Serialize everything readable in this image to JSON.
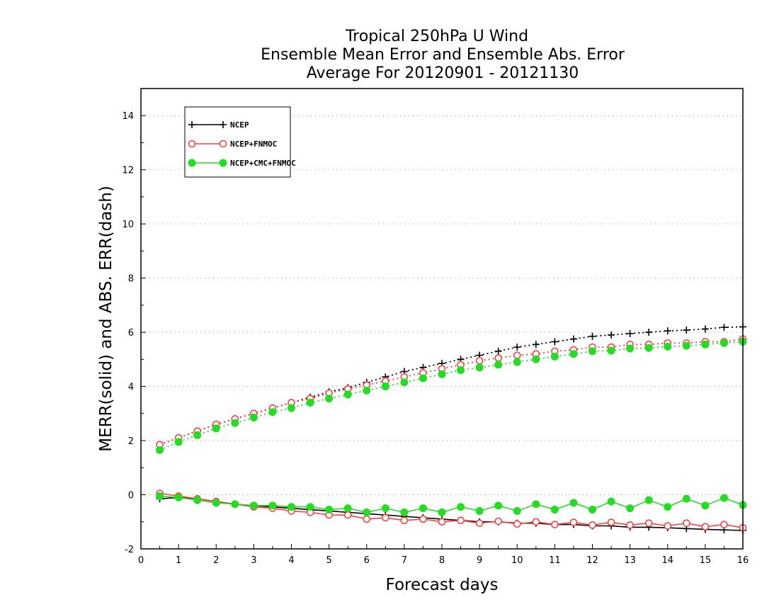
{
  "chart_data": {
    "type": "line",
    "title": [
      "Tropical 250hPa U Wind",
      "Ensemble Mean Error and Ensemble Abs. Error",
      "Average For 20120901 - 20121130"
    ],
    "xlabel": "Forecast days",
    "ylabel": "MERR(solid) and ABS. ERR(dash)",
    "xlim": [
      0,
      16
    ],
    "ylim": [
      -2,
      15
    ],
    "x_ticks": [
      0,
      1,
      2,
      3,
      4,
      5,
      6,
      7,
      8,
      9,
      10,
      11,
      12,
      13,
      14,
      15,
      16
    ],
    "y_ticks": [
      -2,
      0,
      2,
      4,
      6,
      8,
      10,
      12,
      14
    ],
    "grid": true,
    "legend_position": "top-left",
    "x": [
      0.5,
      1,
      1.5,
      2,
      2.5,
      3,
      3.5,
      4,
      4.5,
      5,
      5.5,
      6,
      6.5,
      7,
      7.5,
      8,
      8.5,
      9,
      9.5,
      10,
      10.5,
      11,
      11.5,
      12,
      12.5,
      13,
      13.5,
      14,
      14.5,
      15,
      15.5,
      16
    ],
    "series": [
      {
        "name": "NCEP",
        "color": "#000000",
        "marker": "plus",
        "merr": [
          -0.15,
          -0.1,
          -0.15,
          -0.25,
          -0.35,
          -0.4,
          -0.45,
          -0.5,
          -0.55,
          -0.6,
          -0.65,
          -0.7,
          -0.75,
          -0.8,
          -0.85,
          -0.9,
          -0.95,
          -1.0,
          -1.0,
          -1.05,
          -1.05,
          -1.1,
          -1.1,
          -1.15,
          -1.15,
          -1.2,
          -1.2,
          -1.22,
          -1.25,
          -1.28,
          -1.3,
          -1.32
        ],
        "abs_err": [
          1.85,
          2.1,
          2.35,
          2.6,
          2.8,
          3.0,
          3.2,
          3.4,
          3.6,
          3.8,
          3.95,
          4.15,
          4.35,
          4.55,
          4.7,
          4.85,
          5.0,
          5.15,
          5.3,
          5.45,
          5.55,
          5.65,
          5.75,
          5.85,
          5.9,
          5.95,
          6.0,
          6.05,
          6.08,
          6.12,
          6.18,
          6.2
        ]
      },
      {
        "name": "NCEP+FNMOC",
        "color": "#ff4040",
        "marker": "open-circle",
        "merr": [
          0.05,
          -0.05,
          -0.15,
          -0.25,
          -0.35,
          -0.45,
          -0.5,
          -0.6,
          -0.65,
          -0.75,
          -0.75,
          -0.9,
          -0.85,
          -0.95,
          -0.9,
          -1.0,
          -0.95,
          -1.05,
          -0.98,
          -1.08,
          -1.0,
          -1.1,
          -1.02,
          -1.12,
          -1.02,
          -1.12,
          -1.05,
          -1.15,
          -1.05,
          -1.18,
          -1.1,
          -1.22
        ],
        "abs_err": [
          1.85,
          2.1,
          2.35,
          2.6,
          2.8,
          3.0,
          3.2,
          3.4,
          3.55,
          3.75,
          3.9,
          4.05,
          4.2,
          4.35,
          4.5,
          4.65,
          4.8,
          4.95,
          5.05,
          5.15,
          5.2,
          5.3,
          5.35,
          5.45,
          5.45,
          5.55,
          5.55,
          5.6,
          5.6,
          5.65,
          5.65,
          5.75
        ]
      },
      {
        "name": "NCEP+CMC+FNMOC",
        "color": "#22dd22",
        "marker": "filled-circle",
        "merr": [
          -0.05,
          -0.1,
          -0.2,
          -0.3,
          -0.35,
          -0.4,
          -0.4,
          -0.45,
          -0.45,
          -0.55,
          -0.5,
          -0.65,
          -0.5,
          -0.65,
          -0.5,
          -0.65,
          -0.45,
          -0.6,
          -0.4,
          -0.6,
          -0.35,
          -0.55,
          -0.3,
          -0.55,
          -0.25,
          -0.5,
          -0.2,
          -0.45,
          -0.15,
          -0.4,
          -0.12,
          -0.38
        ],
        "abs_err": [
          1.65,
          1.95,
          2.2,
          2.45,
          2.65,
          2.85,
          3.05,
          3.2,
          3.4,
          3.55,
          3.7,
          3.85,
          4.0,
          4.15,
          4.3,
          4.45,
          4.6,
          4.7,
          4.8,
          4.9,
          5.0,
          5.1,
          5.2,
          5.3,
          5.32,
          5.4,
          5.42,
          5.47,
          5.5,
          5.55,
          5.6,
          5.65
        ]
      }
    ]
  }
}
